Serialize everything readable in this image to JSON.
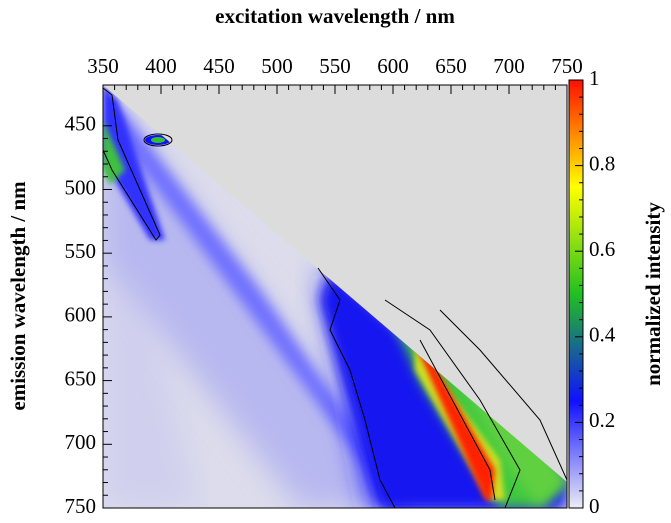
{
  "chart_data": {
    "type": "heatmap",
    "x_label": "excitation wavelength / nm",
    "y_label": "emission wavelength / nm",
    "colorbar_label": "normalized intensity",
    "xlim": [
      350,
      750
    ],
    "xticks": [
      350,
      400,
      450,
      500,
      550,
      600,
      650,
      700,
      750
    ],
    "ylim": [
      418,
      750
    ],
    "yticks": [
      450,
      500,
      550,
      600,
      650,
      700,
      750
    ],
    "clim": [
      0,
      1
    ],
    "cticks": [
      0,
      0.2,
      0.4,
      0.6,
      0.8,
      1
    ],
    "colormap": [
      "#ececf6",
      "#1010ff",
      "#20c020",
      "#ffff00",
      "#ff1000"
    ]
  }
}
